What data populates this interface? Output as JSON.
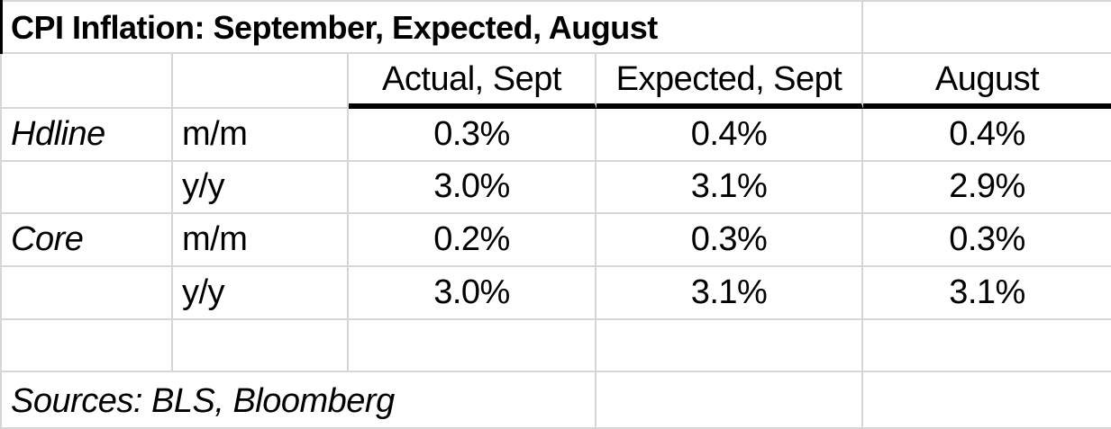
{
  "title": "CPI Inflation: September, Expected, August",
  "header": {
    "group_col": "",
    "measure_col": "",
    "data_columns": [
      "Actual, Sept",
      "Expected, Sept",
      "August"
    ]
  },
  "rows": [
    {
      "group": "Hdline",
      "measure": "m/m",
      "values": [
        "0.3%",
        "0.4%",
        "0.4%"
      ]
    },
    {
      "group": "",
      "measure": "y/y",
      "values": [
        "3.0%",
        "3.1%",
        "2.9%"
      ]
    },
    {
      "group": "Core",
      "measure": "m/m",
      "values": [
        "0.2%",
        "0.3%",
        "0.3%"
      ]
    },
    {
      "group": "",
      "measure": "y/y",
      "values": [
        "3.0%",
        "3.1%",
        "3.1%"
      ]
    }
  ],
  "footer": {
    "sources": "Sources: BLS, Bloomberg"
  },
  "colors": {
    "background": "#ffffff",
    "text": "#000000",
    "gridline": "#d6d6d6",
    "header_rule": "#000000"
  },
  "chart_data": {
    "type": "table",
    "title": "CPI Inflation: September, Expected, August",
    "columns": [
      "",
      "",
      "Actual, Sept",
      "Expected, Sept",
      "August"
    ],
    "rows": [
      [
        "Hdline",
        "m/m",
        "0.3%",
        "0.4%",
        "0.4%"
      ],
      [
        "",
        "y/y",
        "3.0%",
        "3.1%",
        "2.9%"
      ],
      [
        "Core",
        "m/m",
        "0.2%",
        "0.3%",
        "0.3%"
      ],
      [
        "",
        "y/y",
        "3.0%",
        "3.1%",
        "3.1%"
      ]
    ],
    "footnote": "Sources: BLS, Bloomberg"
  }
}
